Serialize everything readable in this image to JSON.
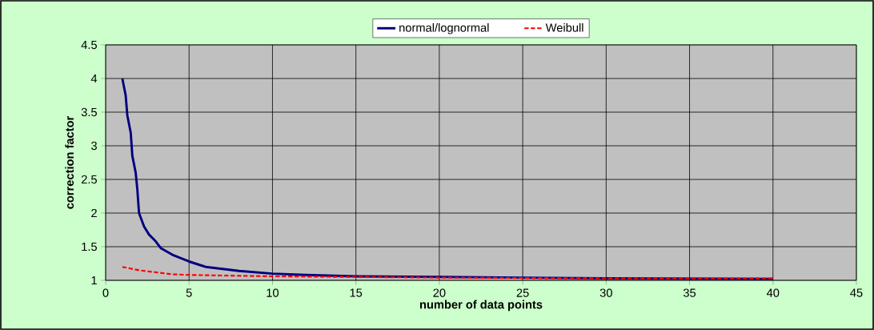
{
  "chart_data": {
    "type": "line",
    "xlabel": "number of data points",
    "ylabel": "correction factor",
    "xlim": [
      0,
      45
    ],
    "xticks": [
      0,
      5,
      10,
      15,
      20,
      25,
      30,
      35,
      40,
      45
    ],
    "ylim": [
      1,
      4.5
    ],
    "yticks": [
      1,
      1.5,
      2,
      2.5,
      3,
      3.5,
      4,
      4.5
    ],
    "grid": true,
    "legend": "top",
    "marker": "none",
    "series": [
      {
        "name": "normal/lognormal",
        "color": "#000080",
        "line_style": "solid",
        "x": [
          1,
          1.2,
          1.3,
          1.5,
          1.6,
          1.8,
          1.9,
          2,
          2.3,
          2.6,
          3,
          3.3,
          4,
          5,
          6,
          7,
          8,
          10,
          12,
          15,
          20,
          25,
          30,
          40
        ],
        "values": [
          4.0,
          3.75,
          3.45,
          3.2,
          2.85,
          2.6,
          2.35,
          2.0,
          1.8,
          1.68,
          1.58,
          1.48,
          1.38,
          1.28,
          1.2,
          1.17,
          1.14,
          1.1,
          1.08,
          1.06,
          1.05,
          1.04,
          1.03,
          1.02
        ]
      },
      {
        "name": "Weibull",
        "color": "#ff0000",
        "line_style": "dashed",
        "x": [
          1,
          2,
          3,
          4,
          5,
          10,
          15,
          20,
          30,
          40
        ],
        "values": [
          1.2,
          1.15,
          1.12,
          1.09,
          1.08,
          1.06,
          1.05,
          1.04,
          1.03,
          1.03
        ]
      }
    ]
  }
}
